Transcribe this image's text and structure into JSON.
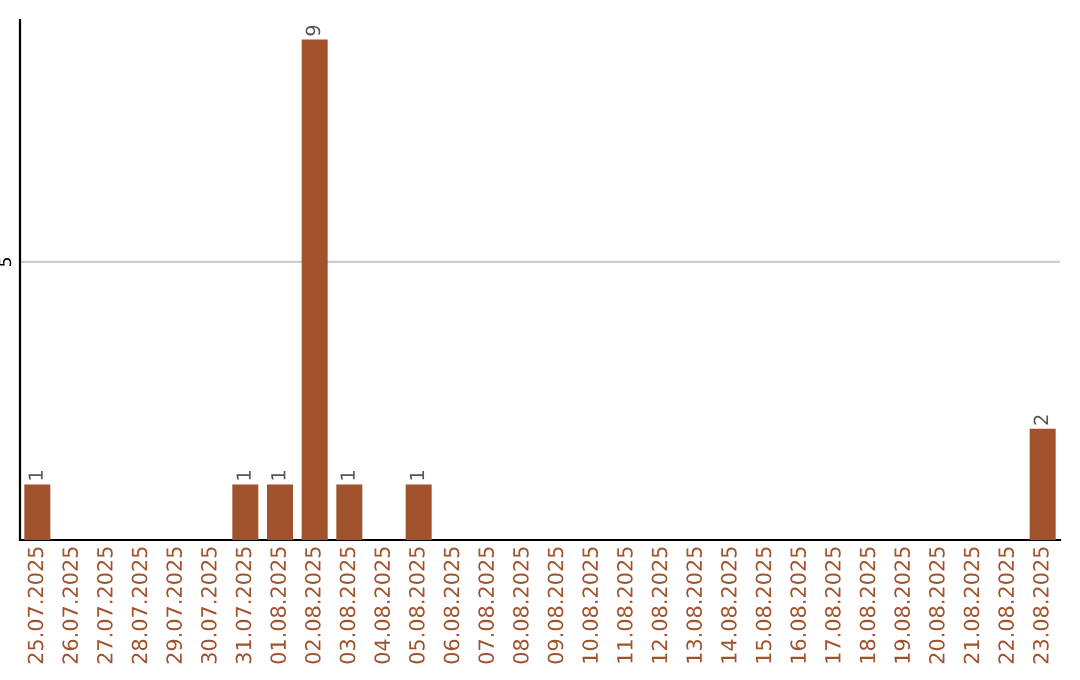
{
  "chart_data": {
    "type": "bar",
    "categories": [
      "25.07.2025",
      "26.07.2025",
      "27.07.2025",
      "28.07.2025",
      "29.07.2025",
      "30.07.2025",
      "31.07.2025",
      "01.08.2025",
      "02.08.2025",
      "03.08.2025",
      "04.08.2025",
      "05.08.2025",
      "06.08.2025",
      "07.08.2025",
      "08.08.2025",
      "09.08.2025",
      "10.08.2025",
      "11.08.2025",
      "12.08.2025",
      "13.08.2025",
      "14.08.2025",
      "15.08.2025",
      "16.08.2025",
      "17.08.2025",
      "18.08.2025",
      "19.08.2025",
      "20.08.2025",
      "21.08.2025",
      "22.08.2025",
      "23.08.2025"
    ],
    "values": [
      1,
      0,
      0,
      0,
      0,
      0,
      1,
      1,
      9,
      1,
      0,
      1,
      0,
      0,
      0,
      0,
      0,
      0,
      0,
      0,
      0,
      0,
      0,
      0,
      0,
      0,
      0,
      0,
      0,
      2
    ],
    "value_labels": [
      "1",
      null,
      null,
      null,
      null,
      null,
      "1",
      "1",
      "9",
      "1",
      null,
      "1",
      null,
      null,
      null,
      null,
      null,
      null,
      null,
      null,
      null,
      null,
      null,
      null,
      null,
      null,
      null,
      null,
      null,
      "2"
    ],
    "color": "#a0522d",
    "ylim": [
      0,
      9.35
    ],
    "yticks": [
      5
    ],
    "grid": "y"
  }
}
